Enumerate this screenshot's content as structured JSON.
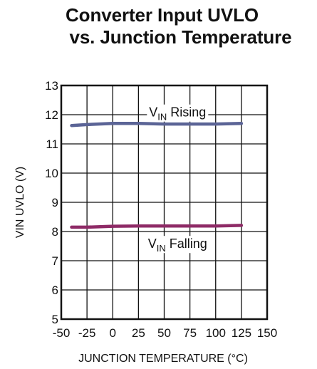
{
  "title_line1": "Converter Input UVLO",
  "title_line2": "vs. Junction Temperature",
  "chart_data": {
    "type": "line",
    "xlabel": "JUNCTION TEMPERATURE (°C)",
    "ylabel": "VIN UVLO (V)",
    "xlim": [
      -50,
      150
    ],
    "ylim": [
      5,
      13
    ],
    "xticks": [
      -50,
      -25,
      0,
      25,
      50,
      75,
      100,
      125,
      150
    ],
    "yticks": [
      5,
      6,
      7,
      8,
      9,
      10,
      11,
      12,
      13
    ],
    "grid": true,
    "series": [
      {
        "label_main": "V",
        "label_sub": "IN",
        "label_rest": " Rising",
        "color": "#5b6496",
        "x": [
          -40,
          -25,
          0,
          25,
          50,
          75,
          100,
          125
        ],
        "y": [
          11.63,
          11.66,
          11.7,
          11.7,
          11.68,
          11.68,
          11.68,
          11.7
        ]
      },
      {
        "label_main": "V",
        "label_sub": "IN",
        "label_rest": " Falling",
        "color": "#8e2a66",
        "x": [
          -40,
          -25,
          0,
          25,
          50,
          75,
          100,
          125
        ],
        "y": [
          8.15,
          8.15,
          8.18,
          8.19,
          8.19,
          8.19,
          8.19,
          8.21
        ]
      }
    ]
  }
}
